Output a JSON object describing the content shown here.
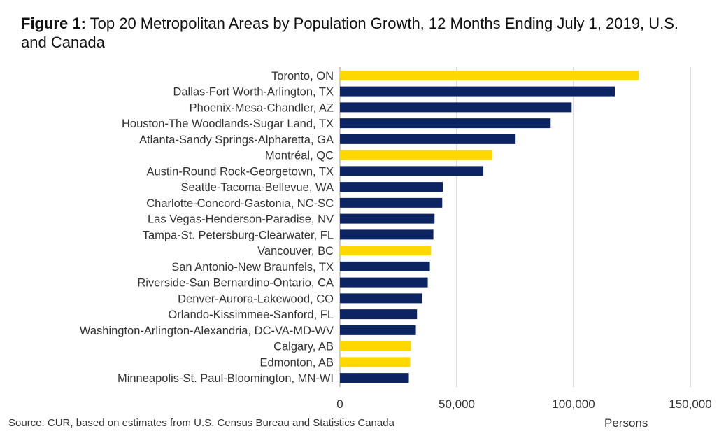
{
  "chart_data": {
    "type": "bar",
    "orientation": "horizontal",
    "title_prefix": "Figure 1:",
    "title": "Top 20 Metropolitan Areas by Population Growth, 12 Months Ending July 1, 2019, U.S. and Canada",
    "xlabel": "Persons",
    "ylabel": "",
    "xlim": [
      0,
      150000
    ],
    "xticks": [
      "0",
      "50,000",
      "100,000",
      "150,000"
    ],
    "xtick_values": [
      0,
      50000,
      100000,
      150000
    ],
    "grid": true,
    "colors": {
      "us": "#0c2461",
      "canada": "#ffd800"
    },
    "categories": [
      "Toronto, ON",
      "Dallas-Fort Worth-Arlington, TX",
      "Phoenix-Mesa-Chandler, AZ",
      "Houston-The Woodlands-Sugar Land, TX",
      "Atlanta-Sandy Springs-Alpharetta, GA",
      "Montréal, QC",
      "Austin-Round Rock-Georgetown, TX",
      "Seattle-Tacoma-Bellevue, WA",
      "Charlotte-Concord-Gastonia, NC-SC",
      "Las Vegas-Henderson-Paradise, NV",
      "Tampa-St. Petersburg-Clearwater, FL",
      "Vancouver, BC",
      "San Antonio-New Braunfels, TX",
      "Riverside-San Bernardino-Ontario, CA",
      "Denver-Aurora-Lakewood, CO",
      "Orlando-Kissimmee-Sanford, FL",
      "Washington-Arlington-Alexandria, DC-VA-MD-WV",
      "Calgary, AB",
      "Edmonton, AB",
      "Minneapolis-St. Paul-Bloomington, MN-WI"
    ],
    "values": [
      127900,
      117700,
      99200,
      90200,
      75200,
      65300,
      61400,
      44100,
      43800,
      40500,
      40000,
      39000,
      38500,
      37600,
      35200,
      33000,
      32500,
      30400,
      30100,
      29500
    ],
    "country": [
      "canada",
      "us",
      "us",
      "us",
      "us",
      "canada",
      "us",
      "us",
      "us",
      "us",
      "us",
      "canada",
      "us",
      "us",
      "us",
      "us",
      "us",
      "canada",
      "canada",
      "us"
    ]
  },
  "source": "Source: CUR, based on estimates from U.S. Census Bureau and Statistics Canada"
}
